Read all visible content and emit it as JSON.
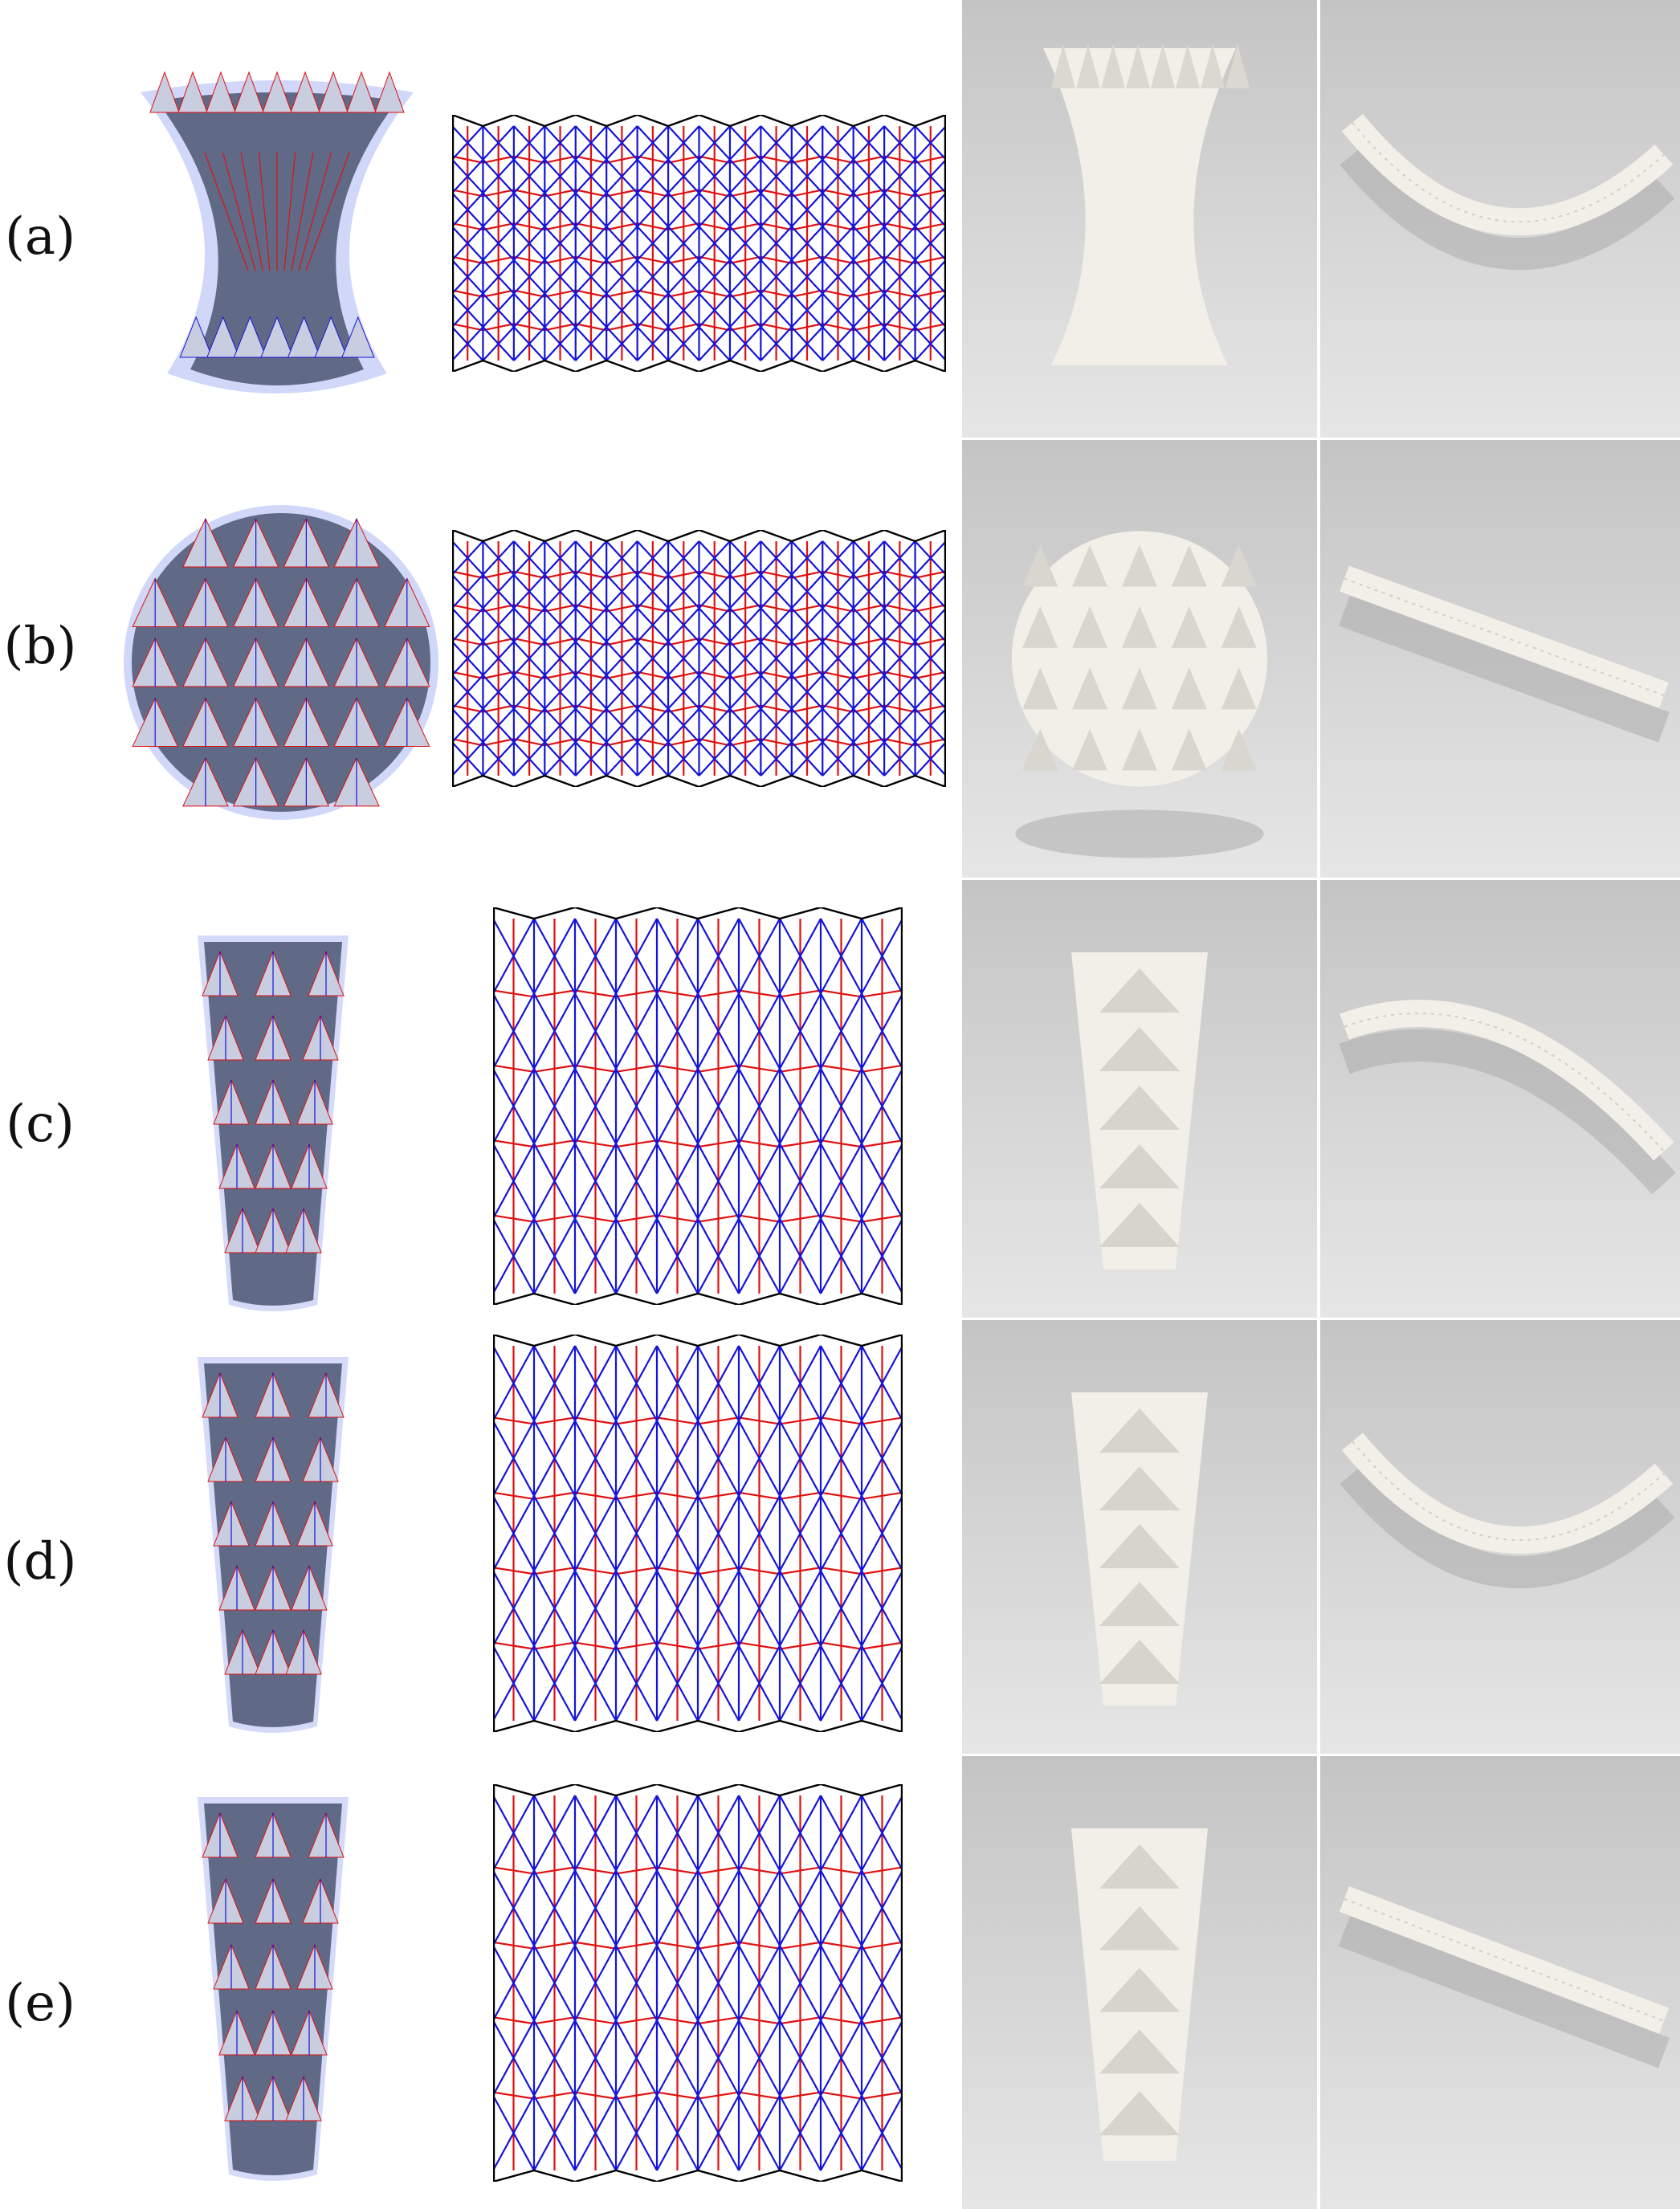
{
  "figure": {
    "rows": [
      {
        "id": "a",
        "label": "(a)",
        "model_shape": "hourglass",
        "pattern": {
          "cols": 16,
          "rows": 7
        },
        "photo_shape": "hourglass",
        "strip_curve": "arc-down"
      },
      {
        "id": "b",
        "label": "(b)",
        "model_shape": "sphere",
        "pattern": {
          "cols": 16,
          "rows": 7
        },
        "photo_shape": "sphere",
        "strip_curve": "flat"
      },
      {
        "id": "c",
        "label": "(c)",
        "model_shape": "tapered-column",
        "pattern": {
          "cols": 10,
          "rows": 5
        },
        "photo_shape": "tapered-column",
        "strip_curve": "arc-up"
      },
      {
        "id": "d",
        "label": "(d)",
        "model_shape": "tapered-column",
        "pattern": {
          "cols": 10,
          "rows": 5
        },
        "photo_shape": "tapered-column",
        "strip_curve": "arc-down"
      },
      {
        "id": "e",
        "label": "(e)",
        "model_shape": "tapered-column",
        "pattern": {
          "cols": 10,
          "rows": 5
        },
        "photo_shape": "tapered-column",
        "strip_curve": "flat"
      }
    ],
    "colors": {
      "mountain": "#e01010",
      "valley": "#1414d8",
      "boundary": "#000000",
      "model_fill": "#606a86",
      "model_light": "#c9cde0",
      "model_halo": "#aab6f2",
      "photo_bg": "#cfcfcf",
      "paper": "#f1efe8",
      "photo_border": "#ffffff"
    }
  }
}
